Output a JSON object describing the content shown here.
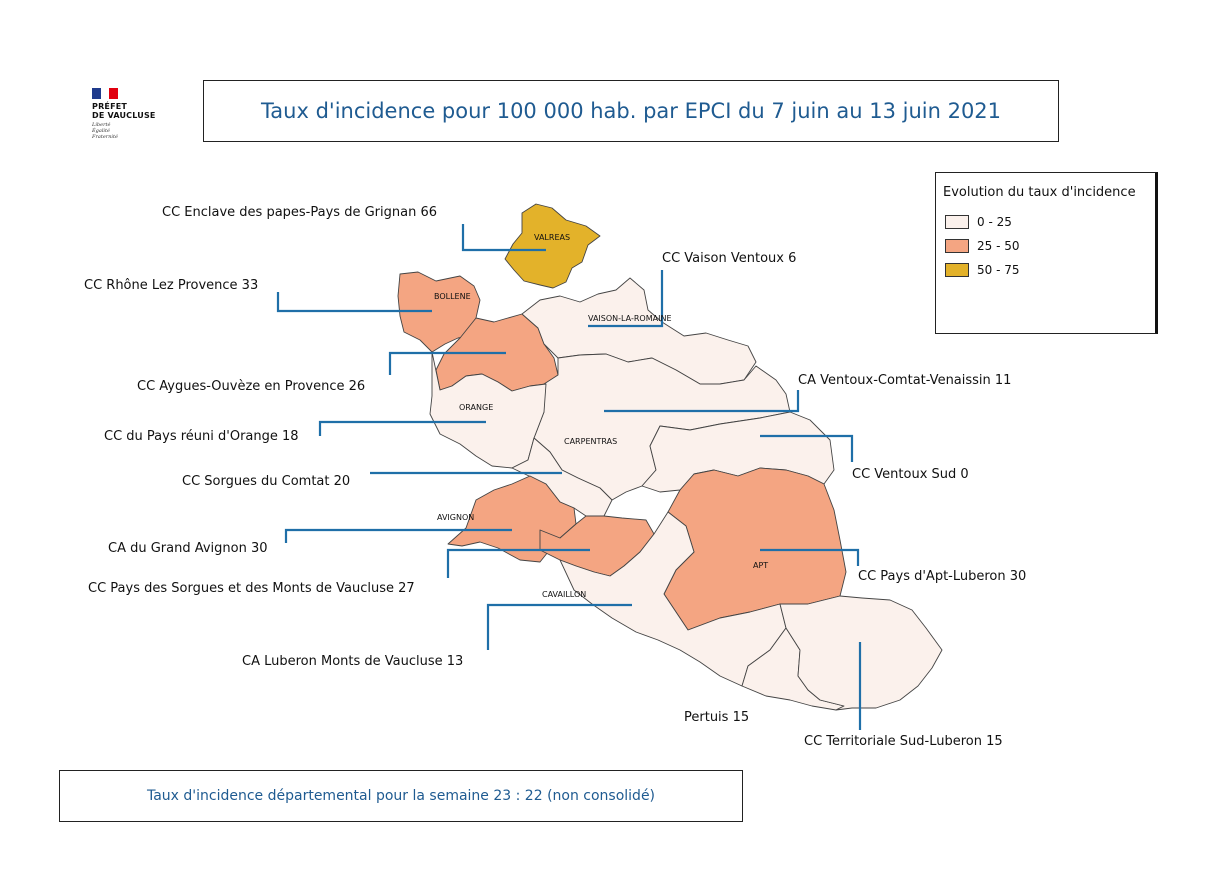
{
  "logo": {
    "line1": "PRÉFET",
    "line2": "DE VAUCLUSE",
    "motto1": "Liberté",
    "motto2": "Égalité",
    "motto3": "Fraternité"
  },
  "title": "Taux d'incidence pour 100 000 hab. par EPCI du 7 juin au 13 juin 2021",
  "legend": {
    "title": "Evolution du taux d'incidence",
    "classes": [
      {
        "label": "0 - 25",
        "color": "#fbf1ec"
      },
      {
        "label": "25 - 50",
        "color": "#f4a582"
      },
      {
        "label": "50 - 75",
        "color": "#e3b22a"
      }
    ]
  },
  "cities": {
    "valreas": "VALREAS",
    "bollene": "BOLLENE",
    "vaison": "VAISON-LA-ROMAINE",
    "orange": "ORANGE",
    "carpentras": "CARPENTRAS",
    "avignon": "AVIGNON",
    "apt": "APT",
    "cavaillon": "CAVAILLON"
  },
  "epci": [
    {
      "name": "CC Enclave des papes-Pays de Grignan",
      "value": 66,
      "label": "CC Enclave des papes-Pays de Grignan  66"
    },
    {
      "name": "CC Vaison Ventoux",
      "value": 6,
      "label": "CC Vaison Ventoux  6"
    },
    {
      "name": "CC Rhône Lez Provence",
      "value": 33,
      "label": "CC Rhône Lez Provence  33"
    },
    {
      "name": "CC Aygues-Ouvèze en Provence",
      "value": 26,
      "label": "CC Aygues-Ouvèze en Provence  26"
    },
    {
      "name": "CA Ventoux-Comtat-Venaissin",
      "value": 11,
      "label": "CA Ventoux-Comtat-Venaissin  11"
    },
    {
      "name": "CC du Pays réuni d'Orange",
      "value": 18,
      "label": "CC du Pays réuni d'Orange  18"
    },
    {
      "name": "CC Ventoux Sud",
      "value": 0,
      "label": "CC Ventoux Sud   0"
    },
    {
      "name": "CC Sorgues du Comtat",
      "value": 20,
      "label": "CC Sorgues du Comtat  20"
    },
    {
      "name": "CA du Grand Avignon",
      "value": 30,
      "label": "CA du Grand Avignon  30"
    },
    {
      "name": "CC Pays des Sorgues et des Monts de Vaucluse",
      "value": 27,
      "label": "CC Pays des Sorgues et des Monts de Vaucluse  27"
    },
    {
      "name": "CC Pays d'Apt-Luberon",
      "value": 30,
      "label": "CC Pays d'Apt-Luberon  30"
    },
    {
      "name": "CA Luberon Monts de Vaucluse",
      "value": 13,
      "label": "CA Luberon Monts de Vaucluse  13"
    },
    {
      "name": "Pertuis",
      "value": 15,
      "label": "Pertuis  15"
    },
    {
      "name": "CC Territoriale Sud-Luberon",
      "value": 15,
      "label": "CC Territoriale Sud-Luberon  15"
    }
  ],
  "footer": "Taux d'incidence départemental pour la semaine 23  :  22  (non consolidé)",
  "colors": {
    "low": "#fbf1ec",
    "mid": "#f4a582",
    "high": "#e3b22a",
    "border": "#444444",
    "leader": "#1f6fa8",
    "title": "#1f5b91"
  }
}
